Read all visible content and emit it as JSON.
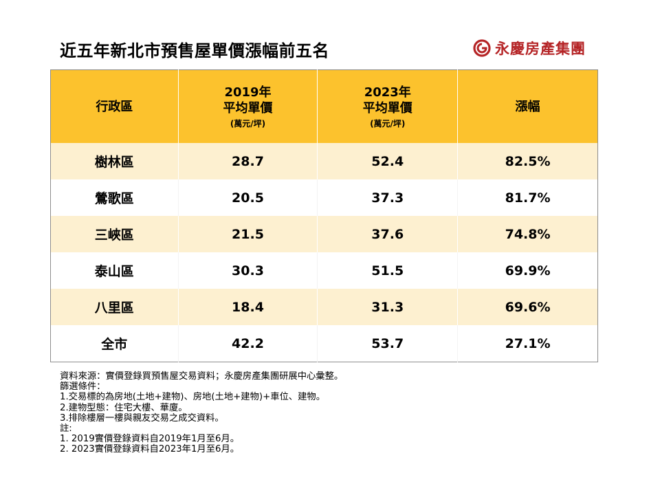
{
  "title": "近五年新北市預售屋單價漲幅前五名",
  "brand": {
    "name": "永慶房產集團",
    "color": "#b52426"
  },
  "table": {
    "header_color": "#fcc22d",
    "headers": [
      {
        "line1": "行政區",
        "line2": "",
        "unit": ""
      },
      {
        "line1": "2019年",
        "line2": "平均單價",
        "unit": "(萬元/坪)"
      },
      {
        "line1": "2023年",
        "line2": "平均單價",
        "unit": "(萬元/坪)"
      },
      {
        "line1": "漲幅",
        "line2": "",
        "unit": ""
      }
    ],
    "rows": [
      [
        "樹林區",
        "28.7",
        "52.4",
        "82.5%"
      ],
      [
        "鶯歌區",
        "20.5",
        "37.3",
        "81.7%"
      ],
      [
        "三峽區",
        "21.5",
        "37.6",
        "74.8%"
      ],
      [
        "泰山區",
        "30.3",
        "51.5",
        "69.9%"
      ],
      [
        "八里區",
        "18.4",
        "31.3",
        "69.6%"
      ],
      [
        "全市",
        "42.2",
        "53.7",
        "27.1%"
      ]
    ]
  },
  "notes": [
    "資料來源：實價登錄買預售屋交易資料；永慶房產集團研展中心彙整。",
    "篩選條件：",
    "1.交易標的為房地(土地+建物)、房地(土地+建物)+車位、建物。",
    "2.建物型態：住宅大樓、華廈。",
    "3.排除樓層一樓與親友交易之成交資料。",
    "註:",
    "1. 2019實價登錄資料自2019年1月至6月。",
    "2. 2023實價登錄資料自2023年1月至6月。"
  ]
}
